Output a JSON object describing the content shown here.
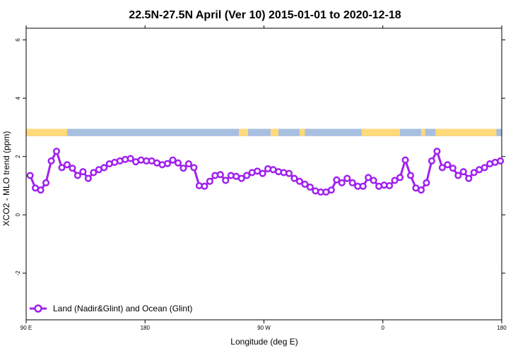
{
  "chart_data": {
    "type": "line",
    "title": "22.5N-27.5N April (Ver 10)   2015-01-01 to 2020-12-18",
    "xlabel": "Longitude (deg E)",
    "ylabel": "XCO2 - MLO trend (ppm)",
    "xlim": [
      90,
      450
    ],
    "ylim": [
      -3.6,
      6.4
    ],
    "x_ticks": [
      {
        "value": 90,
        "label": "90 E"
      },
      {
        "value": 180,
        "label": "180"
      },
      {
        "value": 270,
        "label": "90 W"
      },
      {
        "value": 360,
        "label": "0"
      },
      {
        "value": 450,
        "label": "180"
      }
    ],
    "x_ticks_top": [
      90,
      180,
      270,
      360,
      450
    ],
    "y_ticks": [
      {
        "value": -2,
        "label": "-2"
      },
      {
        "value": 0,
        "label": "0"
      },
      {
        "value": 2,
        "label": "2"
      },
      {
        "value": 4,
        "label": "4"
      },
      {
        "value": 6,
        "label": "6"
      }
    ],
    "legend_position": "bottom-left",
    "colors": {
      "series": "#a020f0",
      "land": "#ffd97a",
      "ocean": "#a7bfe0"
    },
    "land_ocean_strip": {
      "y_range": [
        2.7,
        2.95
      ],
      "land_segments": [
        [
          90,
          121
        ],
        [
          251,
          258
        ],
        [
          275,
          281
        ],
        [
          297,
          301
        ],
        [
          344,
          373
        ],
        [
          389,
          392
        ],
        [
          400,
          446
        ]
      ]
    },
    "series": [
      {
        "name": "Land (Nadir&Glint) and Ocean (Glint)",
        "x": [
          93,
          97,
          101,
          105,
          109,
          113,
          117,
          121,
          125,
          129,
          133,
          137,
          141,
          145,
          149,
          153,
          157,
          161,
          165,
          169,
          173,
          177,
          181,
          185,
          189,
          193,
          197,
          201,
          205,
          209,
          213,
          217,
          221,
          225,
          229,
          233,
          237,
          241,
          245,
          249,
          253,
          257,
          261,
          265,
          269,
          273,
          277,
          281,
          285,
          289,
          293,
          297,
          301,
          305,
          309,
          313,
          317,
          321,
          325,
          329,
          333,
          337,
          341,
          345,
          349,
          353,
          357,
          361,
          365,
          369,
          373,
          377,
          381,
          385,
          389,
          393,
          397,
          401,
          405,
          409,
          413,
          417,
          421,
          425,
          429,
          433,
          437,
          441,
          445,
          449
        ],
        "y": [
          1.35,
          0.92,
          0.85,
          1.1,
          1.85,
          2.18,
          1.62,
          1.72,
          1.6,
          1.35,
          1.48,
          1.25,
          1.45,
          1.55,
          1.62,
          1.75,
          1.8,
          1.85,
          1.9,
          1.93,
          1.82,
          1.88,
          1.85,
          1.85,
          1.78,
          1.72,
          1.76,
          1.88,
          1.78,
          1.6,
          1.75,
          1.62,
          1.0,
          0.98,
          1.15,
          1.35,
          1.38,
          1.18,
          1.35,
          1.32,
          1.25,
          1.35,
          1.45,
          1.5,
          1.42,
          1.58,
          1.55,
          1.48,
          1.45,
          1.42,
          1.25,
          1.15,
          1.05,
          0.95,
          0.82,
          0.78,
          0.78,
          0.85,
          1.2,
          1.1,
          1.25,
          1.1,
          0.98,
          0.98,
          1.28,
          1.18,
          0.98,
          1.02,
          1.0,
          1.18,
          1.28,
          1.88,
          1.35,
          0.92,
          0.85,
          1.1,
          1.85,
          2.18,
          1.62,
          1.72,
          1.6,
          1.35,
          1.48,
          1.25,
          1.45,
          1.55,
          1.62,
          1.75,
          1.8,
          1.85
        ]
      }
    ]
  }
}
